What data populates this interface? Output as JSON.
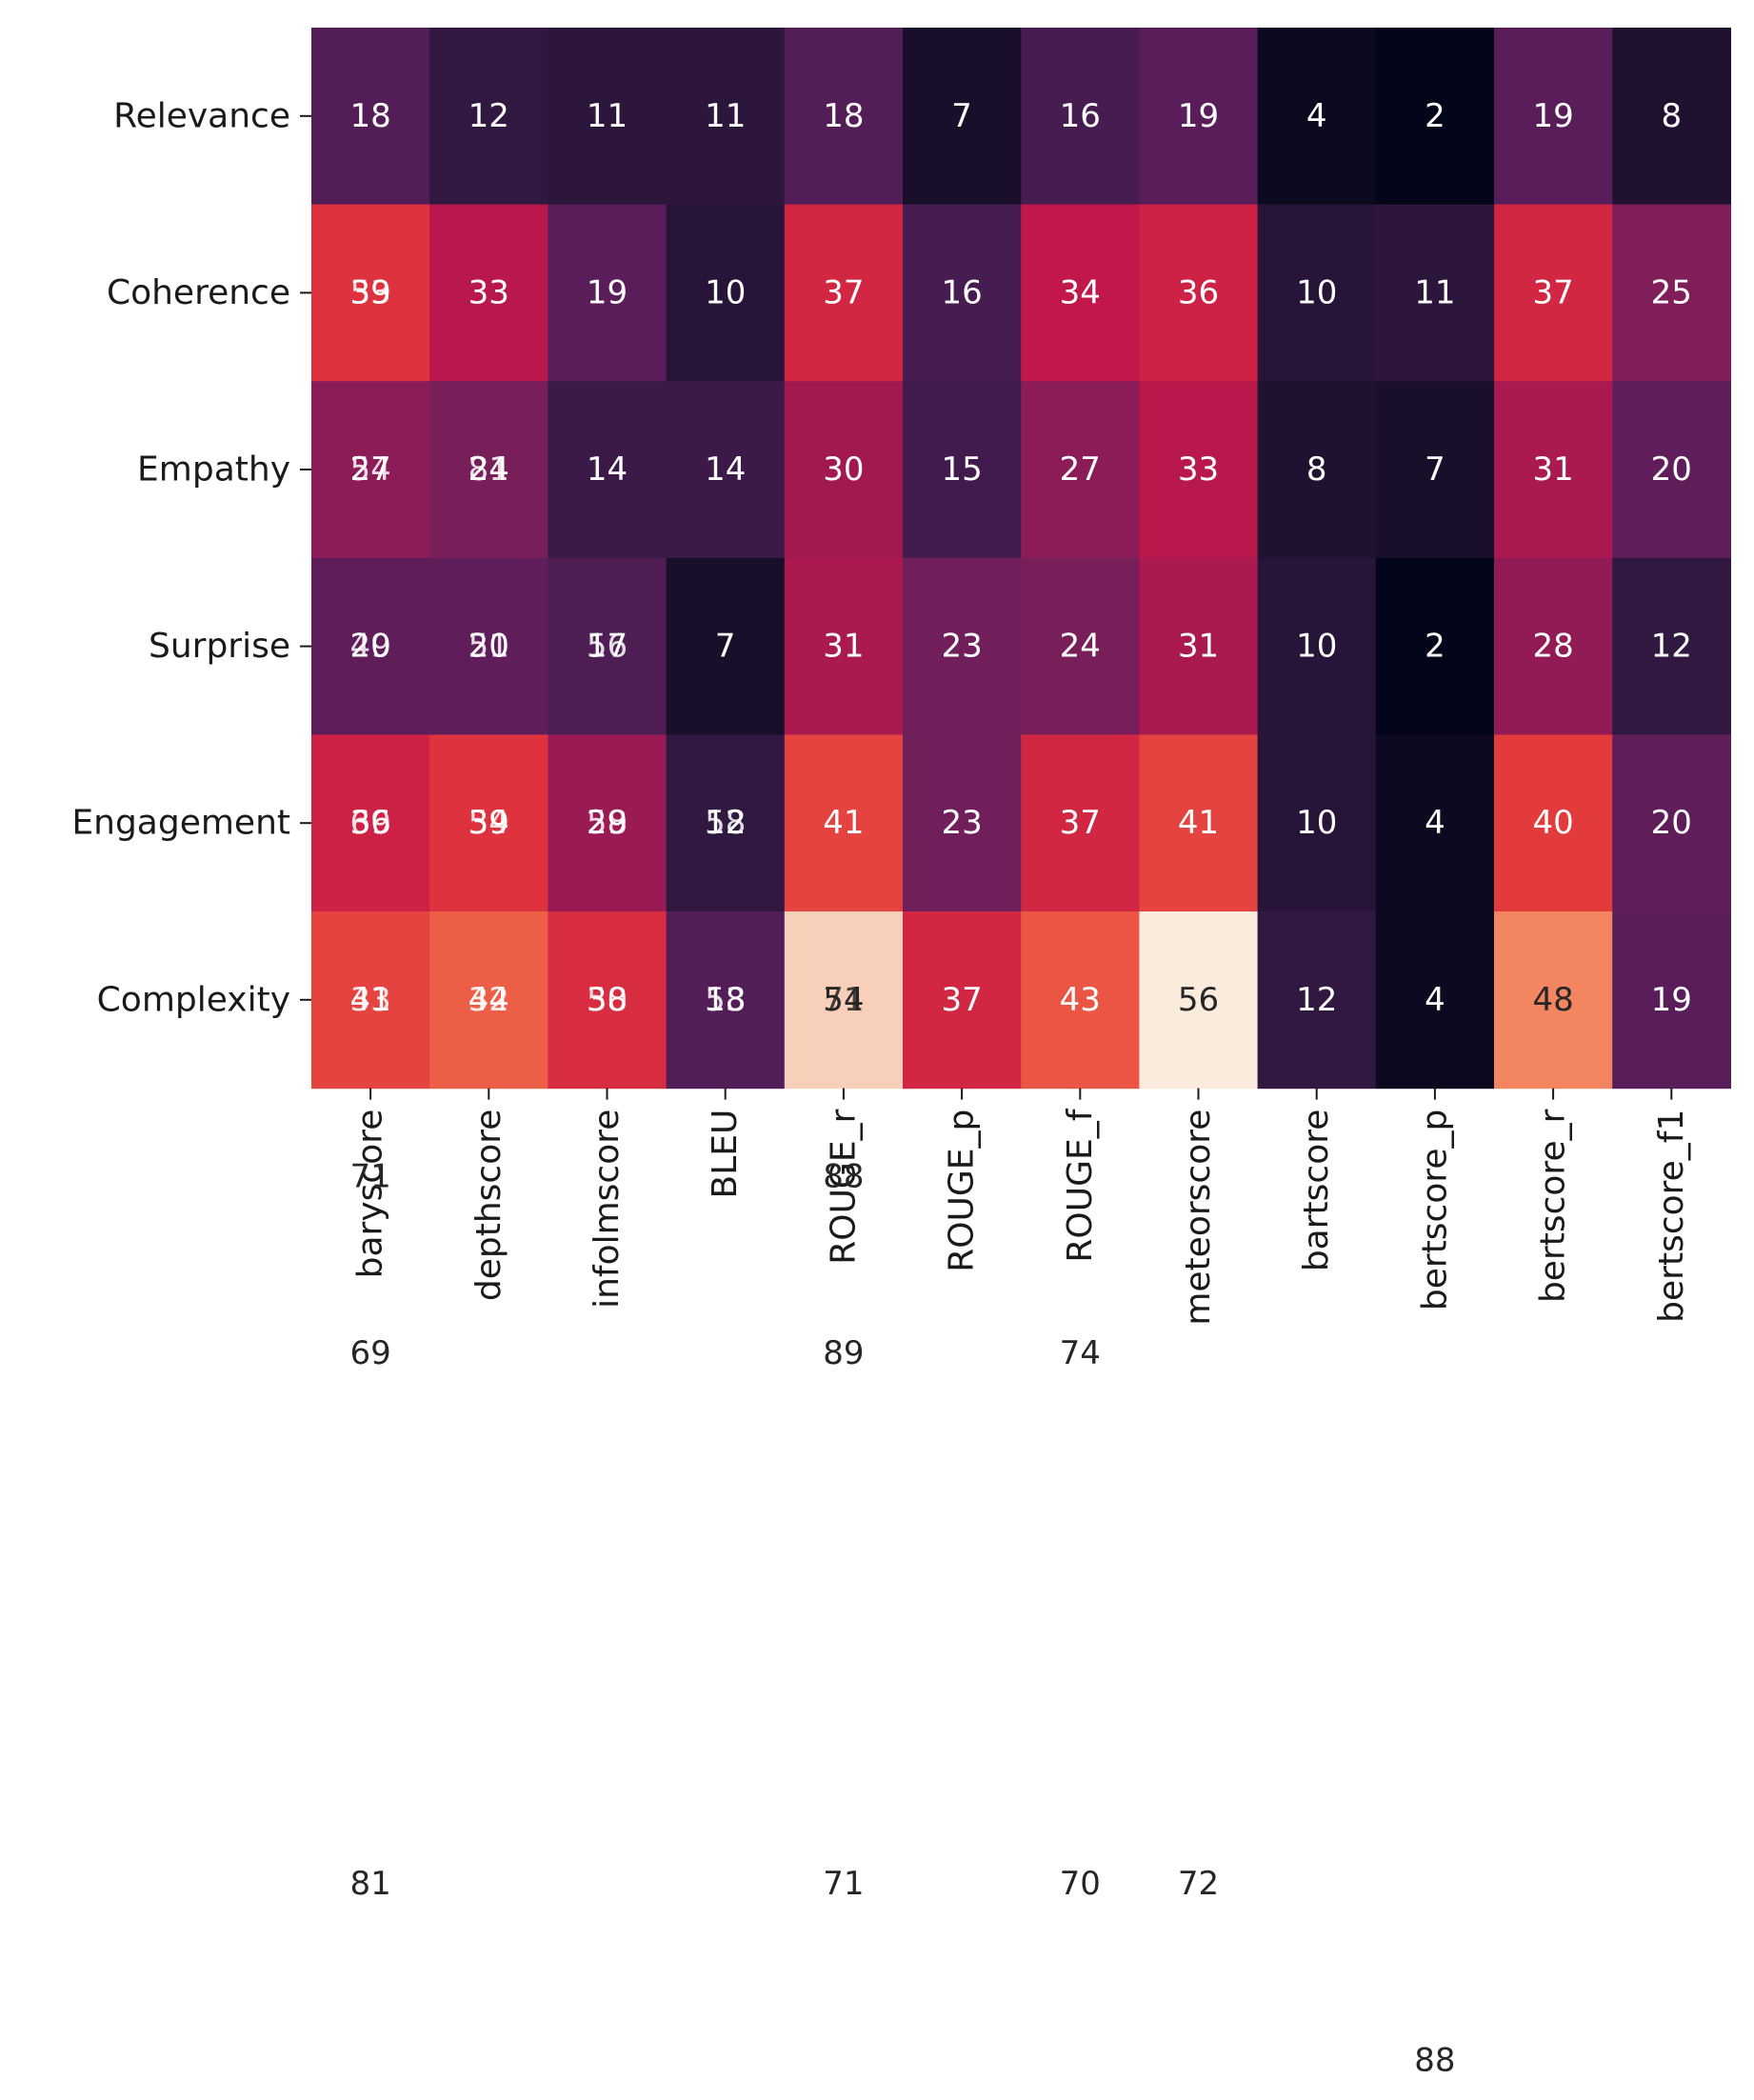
{
  "chart_data": {
    "type": "heatmap",
    "title": "",
    "xlabel": "",
    "ylabel": "",
    "colormap": "rocket",
    "value_range": [
      2,
      56
    ],
    "colorbar": false,
    "grid": false,
    "rows": [
      "Relevance",
      "Coherence",
      "Empathy",
      "Surprise",
      "Engagement",
      "Complexity"
    ],
    "columns": [
      "baryscore",
      "depthscore",
      "infolmscore",
      "BLEU",
      "ROUGE_r",
      "ROUGE_p",
      "ROUGE_f",
      "meteorscore",
      "bartscore",
      "bertscore_p",
      "bertscore_r",
      "bertscore_f1"
    ],
    "values": [
      [
        18,
        12,
        11,
        11,
        18,
        7,
        16,
        19,
        4,
        2,
        19,
        8
      ],
      [
        39,
        33,
        19,
        10,
        37,
        16,
        34,
        36,
        10,
        11,
        37,
        25
      ],
      [
        27,
        24,
        14,
        14,
        30,
        15,
        27,
        33,
        8,
        7,
        31,
        20
      ],
      [
        20,
        20,
        17,
        7,
        31,
        23,
        24,
        31,
        10,
        2,
        28,
        12
      ],
      [
        36,
        39,
        29,
        12,
        41,
        23,
        37,
        41,
        10,
        4,
        40,
        20
      ],
      [
        41,
        44,
        38,
        18,
        54,
        37,
        43,
        56,
        12,
        4,
        48,
        19
      ]
    ],
    "overlapping_cell_labels": [
      {
        "row": 1,
        "col": 0,
        "text": "53"
      },
      {
        "row": 2,
        "col": 0,
        "text": "54"
      },
      {
        "row": 2,
        "col": 1,
        "text": "81"
      },
      {
        "row": 3,
        "col": 0,
        "text": "49"
      },
      {
        "row": 3,
        "col": 1,
        "text": "51"
      },
      {
        "row": 3,
        "col": 2,
        "text": "56"
      },
      {
        "row": 4,
        "col": 0,
        "text": "69"
      },
      {
        "row": 4,
        "col": 1,
        "text": "54"
      },
      {
        "row": 4,
        "col": 2,
        "text": "58"
      },
      {
        "row": 4,
        "col": 3,
        "text": "58"
      },
      {
        "row": 5,
        "col": 0,
        "text": "33"
      },
      {
        "row": 5,
        "col": 1,
        "text": "32"
      },
      {
        "row": 5,
        "col": 2,
        "text": "50"
      },
      {
        "row": 5,
        "col": 3,
        "text": "53"
      },
      {
        "row": 5,
        "col": 4,
        "text": "71"
      }
    ],
    "stray_labels": [
      {
        "row": 6,
        "col": 0,
        "text": "71"
      },
      {
        "row": 6,
        "col": 4,
        "text": "88"
      },
      {
        "row": 7,
        "col": 0,
        "text": "69"
      },
      {
        "row": 7,
        "col": 4,
        "text": "89"
      },
      {
        "row": 7,
        "col": 6,
        "text": "74"
      },
      {
        "row": 10,
        "col": 0,
        "text": "81"
      },
      {
        "row": 10,
        "col": 4,
        "text": "71"
      },
      {
        "row": 10,
        "col": 6,
        "text": "70"
      },
      {
        "row": 10,
        "col": 7,
        "text": "72"
      },
      {
        "row": 11,
        "col": 9,
        "text": "88"
      }
    ]
  }
}
